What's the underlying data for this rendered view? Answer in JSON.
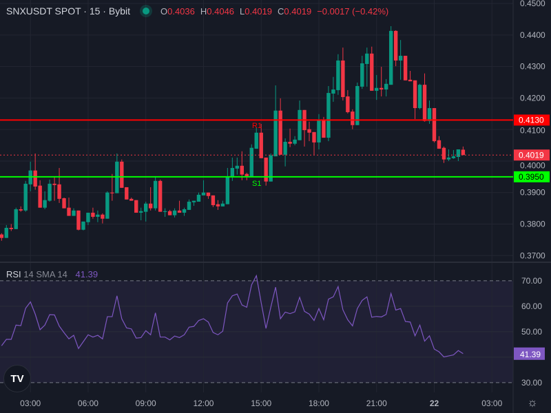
{
  "header": {
    "symbol_line": "SNXUSDT SPOT · 15 · Bybit",
    "market_status_color": "#089981",
    "open_label": "O",
    "open": "0.4036",
    "high_label": "H",
    "high": "0.4046",
    "low_label": "L",
    "low": "0.4019",
    "close_label": "C",
    "close": "0.4019",
    "change": "−0.0017 (−0.42%)"
  },
  "rsi_legend": {
    "name": "RSI",
    "params": "14 SMA 14",
    "value": "41.39"
  },
  "levels": {
    "r1": {
      "label": "R1",
      "price": "0.4130",
      "color": "#ff0000"
    },
    "s1": {
      "label": "S1",
      "price": "0.3950",
      "color": "#00ff00"
    },
    "last": {
      "price": "0.4019",
      "color": "#f23645"
    }
  },
  "icons": {
    "logo": "tradingview-logo-icon",
    "logo_text": "TV",
    "settings": "settings-sun-icon"
  },
  "chart_data": [
    {
      "type": "candlestick",
      "timeframe": "15",
      "up_color": "#089981",
      "down_color": "#f23645",
      "ylim": [
        0.3681,
        0.4511
      ],
      "yticks": [
        "0.4500",
        "0.4400",
        "0.4300",
        "0.4200",
        "0.4100",
        "0.4000",
        "0.3900",
        "0.3800",
        "0.3700"
      ],
      "xticks": [
        "03:00",
        "06:00",
        "09:00",
        "12:00",
        "15:00",
        "18:00",
        "21:00",
        "22",
        "03:00"
      ],
      "grid": true,
      "candles_ohlc": [
        [
          0.3767,
          0.3771,
          0.3747,
          0.3756
        ],
        [
          0.3756,
          0.3797,
          0.3756,
          0.3788
        ],
        [
          0.3788,
          0.38,
          0.3778,
          0.3784
        ],
        [
          0.3784,
          0.3852,
          0.3784,
          0.3847
        ],
        [
          0.3847,
          0.3856,
          0.3839,
          0.3843
        ],
        [
          0.3843,
          0.3937,
          0.3839,
          0.3928
        ],
        [
          0.3926,
          0.3998,
          0.3904,
          0.397
        ],
        [
          0.397,
          0.4024,
          0.3909,
          0.3919
        ],
        [
          0.3922,
          0.3939,
          0.3852,
          0.3852
        ],
        [
          0.3852,
          0.3904,
          0.3847,
          0.3876
        ],
        [
          0.3874,
          0.3941,
          0.3871,
          0.3928
        ],
        [
          0.3928,
          0.395,
          0.3874,
          0.3924
        ],
        [
          0.3926,
          0.3978,
          0.3867,
          0.388
        ],
        [
          0.3882,
          0.3884,
          0.385,
          0.385
        ],
        [
          0.3852,
          0.3884,
          0.3826,
          0.3826
        ],
        [
          0.3826,
          0.385,
          0.3826,
          0.3843
        ],
        [
          0.3843,
          0.3843,
          0.378,
          0.3782
        ],
        [
          0.3782,
          0.3808,
          0.378,
          0.3808
        ],
        [
          0.3806,
          0.3836,
          0.3797,
          0.3836
        ],
        [
          0.3836,
          0.3852,
          0.3817,
          0.3823
        ],
        [
          0.3823,
          0.3843,
          0.3806,
          0.383
        ],
        [
          0.383,
          0.3834,
          0.3802,
          0.3817
        ],
        [
          0.3817,
          0.3904,
          0.3817,
          0.39
        ],
        [
          0.39,
          0.3959,
          0.3874,
          0.3898
        ],
        [
          0.3898,
          0.4024,
          0.3898,
          0.3998
        ],
        [
          0.3998,
          0.4005,
          0.3915,
          0.3915
        ],
        [
          0.3917,
          0.3917,
          0.3878,
          0.3878
        ],
        [
          0.388,
          0.3884,
          0.3874,
          0.3874
        ],
        [
          0.3876,
          0.3876,
          0.3836,
          0.3836
        ],
        [
          0.3836,
          0.3852,
          0.3812,
          0.3841
        ],
        [
          0.3839,
          0.3871,
          0.3808,
          0.3865
        ],
        [
          0.3865,
          0.3917,
          0.3843,
          0.385
        ],
        [
          0.385,
          0.3952,
          0.3843,
          0.3937
        ],
        [
          0.3937,
          0.3941,
          0.3839,
          0.3839
        ],
        [
          0.3839,
          0.385,
          0.3823,
          0.3841
        ],
        [
          0.3841,
          0.3845,
          0.3828,
          0.3828
        ],
        [
          0.3828,
          0.385,
          0.3821,
          0.3843
        ],
        [
          0.3843,
          0.3874,
          0.3836,
          0.3836
        ],
        [
          0.3836,
          0.3852,
          0.3826,
          0.3847
        ],
        [
          0.3845,
          0.3878,
          0.3845,
          0.3871
        ],
        [
          0.3869,
          0.3874,
          0.3858,
          0.3874
        ],
        [
          0.3871,
          0.39,
          0.3871,
          0.3893
        ],
        [
          0.3891,
          0.3939,
          0.3891,
          0.39
        ],
        [
          0.39,
          0.39,
          0.388,
          0.3889
        ],
        [
          0.3891,
          0.3891,
          0.3854,
          0.386
        ],
        [
          0.3863,
          0.3876,
          0.3845,
          0.3856
        ],
        [
          0.3856,
          0.3874,
          0.3856,
          0.3865
        ],
        [
          0.3863,
          0.3978,
          0.3863,
          0.395
        ],
        [
          0.3948,
          0.4011,
          0.3937,
          0.3978
        ],
        [
          0.3976,
          0.4011,
          0.3957,
          0.3985
        ],
        [
          0.3985,
          0.4031,
          0.3939,
          0.3957
        ],
        [
          0.3959,
          0.3963,
          0.3939,
          0.3952
        ],
        [
          0.3952,
          0.4053,
          0.3952,
          0.4042
        ],
        [
          0.4039,
          0.4107,
          0.4039,
          0.409
        ],
        [
          0.409,
          0.4118,
          0.4009,
          0.4009
        ],
        [
          0.4011,
          0.4011,
          0.3922,
          0.3935
        ],
        [
          0.3935,
          0.4024,
          0.3935,
          0.4018
        ],
        [
          0.4015,
          0.424,
          0.4015,
          0.416
        ],
        [
          0.416,
          0.4199,
          0.402,
          0.402
        ],
        [
          0.402,
          0.4072,
          0.3983,
          0.4061
        ],
        [
          0.4061,
          0.4103,
          0.4044,
          0.4055
        ],
        [
          0.4055,
          0.4079,
          0.405,
          0.4068
        ],
        [
          0.4066,
          0.4192,
          0.4066,
          0.4162
        ],
        [
          0.4162,
          0.4162,
          0.4046,
          0.4098
        ],
        [
          0.4101,
          0.4125,
          0.4063,
          0.409
        ],
        [
          0.4092,
          0.4092,
          0.402,
          0.4059
        ],
        [
          0.4059,
          0.4149,
          0.4037,
          0.4129
        ],
        [
          0.4129,
          0.414,
          0.4074,
          0.4074
        ],
        [
          0.4074,
          0.4238,
          0.4063,
          0.4216
        ],
        [
          0.4214,
          0.4267,
          0.4188,
          0.4227
        ],
        [
          0.4225,
          0.4339,
          0.421,
          0.4319
        ],
        [
          0.4319,
          0.436,
          0.4192,
          0.4203
        ],
        [
          0.4205,
          0.4225,
          0.4151,
          0.4155
        ],
        [
          0.4157,
          0.4164,
          0.4101,
          0.4114
        ],
        [
          0.4114,
          0.4249,
          0.4114,
          0.4238
        ],
        [
          0.4236,
          0.4334,
          0.4229,
          0.431
        ],
        [
          0.4308,
          0.436,
          0.4236,
          0.4341
        ],
        [
          0.4341,
          0.4363,
          0.4223,
          0.4223
        ],
        [
          0.4223,
          0.4273,
          0.4194,
          0.4232
        ],
        [
          0.4232,
          0.4299,
          0.4205,
          0.4227
        ],
        [
          0.4227,
          0.426,
          0.4205,
          0.4245
        ],
        [
          0.4242,
          0.4428,
          0.4242,
          0.4413
        ],
        [
          0.4413,
          0.4415,
          0.4301,
          0.4319
        ],
        [
          0.4319,
          0.4384,
          0.4258,
          0.4334
        ],
        [
          0.4334,
          0.4334,
          0.4256,
          0.4256
        ],
        [
          0.4258,
          0.4286,
          0.4253,
          0.4253
        ],
        [
          0.4256,
          0.4256,
          0.4133,
          0.4168
        ],
        [
          0.4168,
          0.4245,
          0.4164,
          0.4242
        ],
        [
          0.4242,
          0.4278,
          0.4125,
          0.4127
        ],
        [
          0.4127,
          0.4192,
          0.4118,
          0.4168
        ],
        [
          0.4168,
          0.4168,
          0.4059,
          0.4063
        ],
        [
          0.4066,
          0.4079,
          0.4039,
          0.4039
        ],
        [
          0.4042,
          0.4046,
          0.3994,
          0.4005
        ],
        [
          0.4005,
          0.4037,
          0.4,
          0.4011
        ],
        [
          0.4009,
          0.4035,
          0.4007,
          0.4015
        ],
        [
          0.4013,
          0.4037,
          0.4,
          0.4037
        ],
        [
          0.4036,
          0.4046,
          0.4019,
          0.4019
        ]
      ]
    },
    {
      "type": "line",
      "name": "RSI",
      "color": "#7e57c2",
      "ylim": [
        26.2,
        77.0
      ],
      "yticks": [
        "70.00",
        "60.00",
        "50.00",
        "30.00"
      ],
      "band": [
        30,
        70
      ],
      "values": [
        44.5,
        47.0,
        47.0,
        52.6,
        52.4,
        59.2,
        61.7,
        56.9,
        50.8,
        52.6,
        56.7,
        56.6,
        52.2,
        49.6,
        47.2,
        48.6,
        43.4,
        46.1,
        48.8,
        47.9,
        48.6,
        47.2,
        55.9,
        55.9,
        64.1,
        55.1,
        51.5,
        51.1,
        47.5,
        47.7,
        50.4,
        48.8,
        57.4,
        47.9,
        47.9,
        46.8,
        48.3,
        47.7,
        48.8,
        51.8,
        52.1,
        54.4,
        55.1,
        53.8,
        49.7,
        48.8,
        50.2,
        61.3,
        64.1,
        64.8,
        60.5,
        59.6,
        68.4,
        72.0,
        61.4,
        51.3,
        59.6,
        67.5,
        55.1,
        57.7,
        57.1,
        57.8,
        63.5,
        58.0,
        56.9,
        54.4,
        59.1,
        54.7,
        62.8,
        63.7,
        67.7,
        58.6,
        54.7,
        52.3,
        59.1,
        62.3,
        63.7,
        55.7,
        56.0,
        55.8,
        56.8,
        65.0,
        58.5,
        59.1,
        54.0,
        53.8,
        48.4,
        52.6,
        46.3,
        48.4,
        43.2,
        42.1,
        40.1,
        40.5,
        40.9,
        42.6,
        41.39
      ]
    }
  ]
}
